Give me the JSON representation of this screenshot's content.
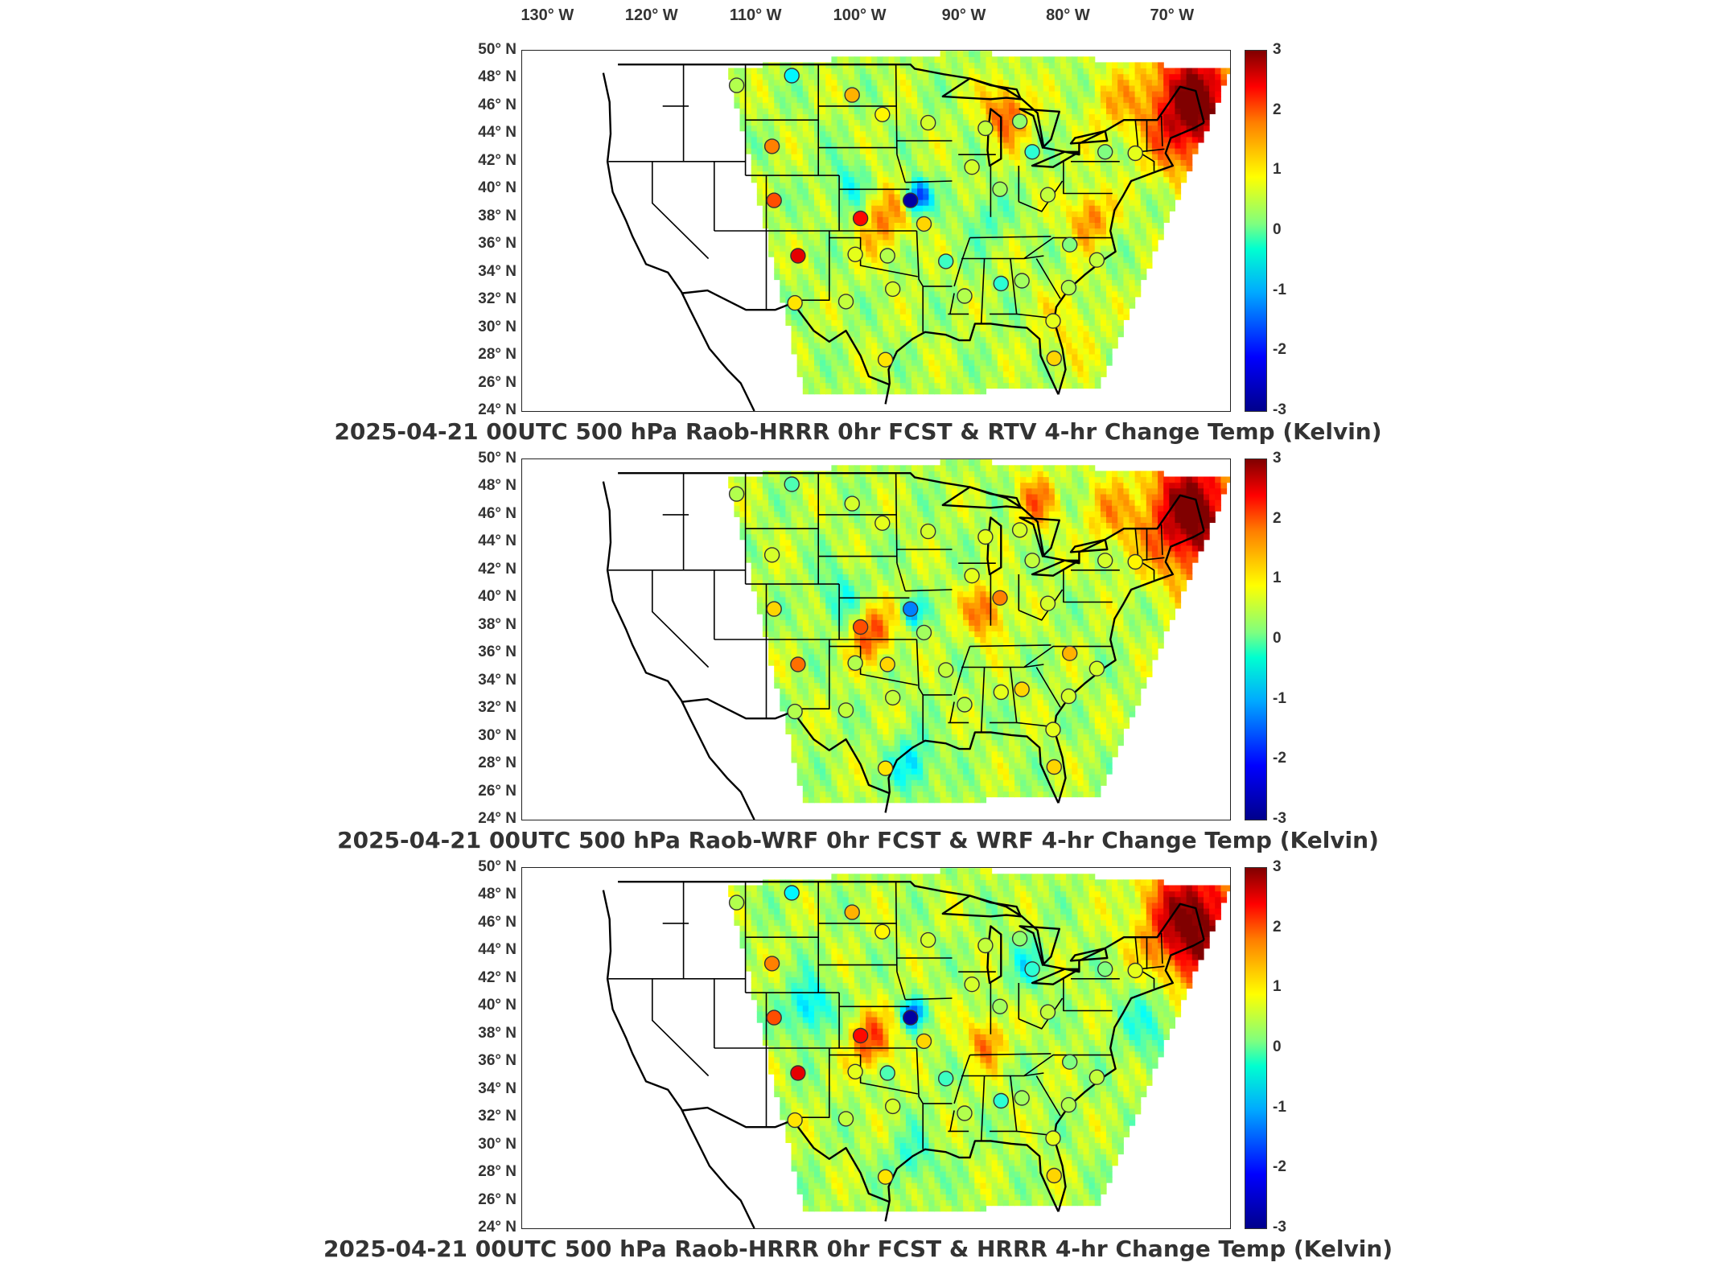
{
  "lon_labels": [
    "130° W",
    "120° W",
    "110° W",
    "100° W",
    "90° W",
    "80° W",
    "70° W"
  ],
  "lat_labels": [
    "50° N",
    "48° N",
    "46° N",
    "44° N",
    "42° N",
    "40° N",
    "38° N",
    "36° N",
    "34° N",
    "32° N",
    "30° N",
    "28° N",
    "26° N",
    "24° N"
  ],
  "colorbar": {
    "min": -3,
    "max": 3,
    "ticks": [
      "3",
      "2",
      "1",
      "0",
      "-1",
      "-2",
      "-3"
    ],
    "colormap": "jet"
  },
  "panels": [
    {
      "title": "2025-04-21 00UTC 500 hPa Raob-HRRR 0hr FCST & RTV 4-hr Change Temp (Kelvin)",
      "stations": [
        {
          "lon": -111.9,
          "lat": 47.5,
          "v": 0.3
        },
        {
          "lon": -106.6,
          "lat": 48.2,
          "v": -0.8
        },
        {
          "lon": -100.8,
          "lat": 46.8,
          "v": 1.2
        },
        {
          "lon": -97.9,
          "lat": 45.4,
          "v": 0.8
        },
        {
          "lon": -93.5,
          "lat": 44.8,
          "v": 0.5
        },
        {
          "lon": -88.0,
          "lat": 44.4,
          "v": 0.4
        },
        {
          "lon": -84.7,
          "lat": 44.9,
          "v": 0.1
        },
        {
          "lon": -108.5,
          "lat": 43.1,
          "v": 1.5
        },
        {
          "lon": -83.5,
          "lat": 42.7,
          "v": -0.5
        },
        {
          "lon": -76.5,
          "lat": 42.7,
          "v": 0.0
        },
        {
          "lon": -73.6,
          "lat": 42.6,
          "v": 0.6
        },
        {
          "lon": -89.3,
          "lat": 41.6,
          "v": 0.5
        },
        {
          "lon": -86.6,
          "lat": 40.0,
          "v": 0.2
        },
        {
          "lon": -82.0,
          "lat": 39.6,
          "v": 0.4
        },
        {
          "lon": -108.3,
          "lat": 39.2,
          "v": 1.8
        },
        {
          "lon": -95.2,
          "lat": 39.2,
          "v": -2.8
        },
        {
          "lon": -100.0,
          "lat": 37.9,
          "v": 2.2
        },
        {
          "lon": -93.9,
          "lat": 37.5,
          "v": 1.0
        },
        {
          "lon": -106.0,
          "lat": 35.2,
          "v": 2.4
        },
        {
          "lon": -100.5,
          "lat": 35.3,
          "v": 0.6
        },
        {
          "lon": -97.4,
          "lat": 35.2,
          "v": 0.3
        },
        {
          "lon": -91.8,
          "lat": 34.8,
          "v": -0.4
        },
        {
          "lon": -86.5,
          "lat": 33.2,
          "v": -0.5
        },
        {
          "lon": -84.5,
          "lat": 33.4,
          "v": 0.2
        },
        {
          "lon": -79.9,
          "lat": 36.0,
          "v": 0.0
        },
        {
          "lon": -77.3,
          "lat": 34.9,
          "v": 0.4
        },
        {
          "lon": -80.0,
          "lat": 32.9,
          "v": 0.3
        },
        {
          "lon": -90.0,
          "lat": 32.3,
          "v": 0.3
        },
        {
          "lon": -96.9,
          "lat": 32.8,
          "v": 0.5
        },
        {
          "lon": -101.4,
          "lat": 31.9,
          "v": 0.4
        },
        {
          "lon": -106.3,
          "lat": 31.8,
          "v": 0.9
        },
        {
          "lon": -97.6,
          "lat": 27.7,
          "v": 0.9
        },
        {
          "lon": -81.4,
          "lat": 27.8,
          "v": 1.0
        },
        {
          "lon": -81.5,
          "lat": 30.5,
          "v": 0.6
        }
      ]
    },
    {
      "title": "2025-04-21 00UTC 500 hPa Raob-WRF 0hr FCST & WRF 4-hr Change Temp (Kelvin)",
      "stations": [
        {
          "lon": -111.9,
          "lat": 47.5,
          "v": 0.3
        },
        {
          "lon": -106.6,
          "lat": 48.2,
          "v": -0.3
        },
        {
          "lon": -100.8,
          "lat": 46.8,
          "v": 0.5
        },
        {
          "lon": -97.9,
          "lat": 45.4,
          "v": 0.6
        },
        {
          "lon": -93.5,
          "lat": 44.8,
          "v": 0.5
        },
        {
          "lon": -88.0,
          "lat": 44.4,
          "v": 0.6
        },
        {
          "lon": -84.7,
          "lat": 44.9,
          "v": 0.5
        },
        {
          "lon": -108.5,
          "lat": 43.1,
          "v": 0.5
        },
        {
          "lon": -83.5,
          "lat": 42.7,
          "v": 0.4
        },
        {
          "lon": -76.5,
          "lat": 42.7,
          "v": 0.5
        },
        {
          "lon": -73.6,
          "lat": 42.6,
          "v": 0.8
        },
        {
          "lon": -89.3,
          "lat": 41.6,
          "v": 0.6
        },
        {
          "lon": -86.6,
          "lat": 40.0,
          "v": 1.5
        },
        {
          "lon": -82.0,
          "lat": 39.6,
          "v": 0.5
        },
        {
          "lon": -108.3,
          "lat": 39.2,
          "v": 1.0
        },
        {
          "lon": -95.2,
          "lat": 39.2,
          "v": -1.5
        },
        {
          "lon": -100.0,
          "lat": 37.9,
          "v": 1.8
        },
        {
          "lon": -93.9,
          "lat": 37.5,
          "v": 0.2
        },
        {
          "lon": -106.0,
          "lat": 35.2,
          "v": 1.6
        },
        {
          "lon": -100.5,
          "lat": 35.3,
          "v": 0.3
        },
        {
          "lon": -97.4,
          "lat": 35.2,
          "v": 1.0
        },
        {
          "lon": -91.8,
          "lat": 34.8,
          "v": 0.4
        },
        {
          "lon": -86.5,
          "lat": 33.2,
          "v": 0.6
        },
        {
          "lon": -84.5,
          "lat": 33.4,
          "v": 1.0
        },
        {
          "lon": -79.9,
          "lat": 36.0,
          "v": 1.2
        },
        {
          "lon": -77.3,
          "lat": 34.9,
          "v": 0.5
        },
        {
          "lon": -80.0,
          "lat": 32.9,
          "v": 0.5
        },
        {
          "lon": -90.0,
          "lat": 32.3,
          "v": 0.3
        },
        {
          "lon": -96.9,
          "lat": 32.8,
          "v": 0.4
        },
        {
          "lon": -101.4,
          "lat": 31.9,
          "v": 0.4
        },
        {
          "lon": -106.3,
          "lat": 31.8,
          "v": 0.3
        },
        {
          "lon": -97.6,
          "lat": 27.7,
          "v": 0.9
        },
        {
          "lon": -81.4,
          "lat": 27.8,
          "v": 1.0
        },
        {
          "lon": -81.5,
          "lat": 30.5,
          "v": 0.6
        }
      ]
    },
    {
      "title": "2025-04-21 00UTC 500 hPa Raob-HRRR 0hr FCST & HRRR 4-hr Change Temp (Kelvin)",
      "stations": [
        {
          "lon": -111.9,
          "lat": 47.5,
          "v": 0.3
        },
        {
          "lon": -106.6,
          "lat": 48.2,
          "v": -0.8
        },
        {
          "lon": -100.8,
          "lat": 46.8,
          "v": 1.2
        },
        {
          "lon": -97.9,
          "lat": 45.4,
          "v": 0.8
        },
        {
          "lon": -93.5,
          "lat": 44.8,
          "v": 0.5
        },
        {
          "lon": -88.0,
          "lat": 44.4,
          "v": 0.4
        },
        {
          "lon": -84.7,
          "lat": 44.9,
          "v": 0.1
        },
        {
          "lon": -108.5,
          "lat": 43.1,
          "v": 1.5
        },
        {
          "lon": -83.5,
          "lat": 42.7,
          "v": -0.5
        },
        {
          "lon": -76.5,
          "lat": 42.7,
          "v": 0.0
        },
        {
          "lon": -73.6,
          "lat": 42.6,
          "v": 0.6
        },
        {
          "lon": -89.3,
          "lat": 41.6,
          "v": 0.5
        },
        {
          "lon": -86.6,
          "lat": 40.0,
          "v": 0.2
        },
        {
          "lon": -82.0,
          "lat": 39.6,
          "v": 0.4
        },
        {
          "lon": -108.3,
          "lat": 39.2,
          "v": 1.8
        },
        {
          "lon": -95.2,
          "lat": 39.2,
          "v": -2.8
        },
        {
          "lon": -100.0,
          "lat": 37.9,
          "v": 2.2
        },
        {
          "lon": -93.9,
          "lat": 37.5,
          "v": 1.0
        },
        {
          "lon": -106.0,
          "lat": 35.2,
          "v": 2.4
        },
        {
          "lon": -100.5,
          "lat": 35.3,
          "v": 0.6
        },
        {
          "lon": -97.4,
          "lat": 35.2,
          "v": -0.3
        },
        {
          "lon": -91.8,
          "lat": 34.8,
          "v": -0.4
        },
        {
          "lon": -86.5,
          "lat": 33.2,
          "v": -0.5
        },
        {
          "lon": -84.5,
          "lat": 33.4,
          "v": 0.2
        },
        {
          "lon": -79.9,
          "lat": 36.0,
          "v": 0.0
        },
        {
          "lon": -77.3,
          "lat": 34.9,
          "v": 0.4
        },
        {
          "lon": -80.0,
          "lat": 32.9,
          "v": 0.3
        },
        {
          "lon": -90.0,
          "lat": 32.3,
          "v": 0.3
        },
        {
          "lon": -96.9,
          "lat": 32.8,
          "v": 0.5
        },
        {
          "lon": -101.4,
          "lat": 31.9,
          "v": 0.4
        },
        {
          "lon": -106.3,
          "lat": 31.8,
          "v": 0.9
        },
        {
          "lon": -97.6,
          "lat": 27.7,
          "v": 0.9
        },
        {
          "lon": -81.4,
          "lat": 27.8,
          "v": 1.0
        },
        {
          "lon": -81.5,
          "lat": 30.5,
          "v": 0.6
        }
      ]
    }
  ]
}
